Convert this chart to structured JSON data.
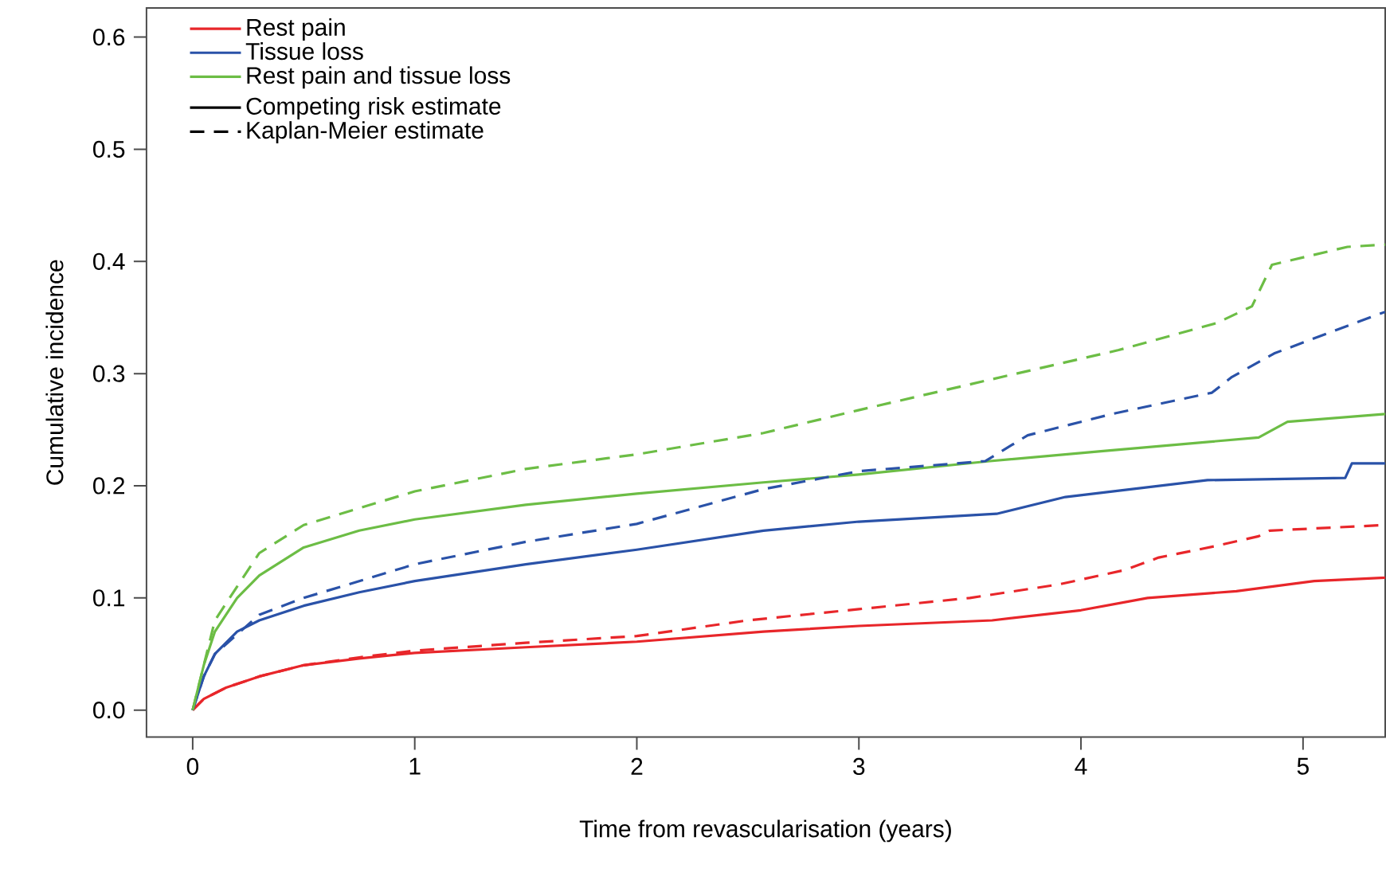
{
  "chart_data": {
    "type": "line",
    "xlabel": "Time from revascularisation (years)",
    "ylabel": "Cumulative incidence",
    "xlim": [
      -0.208,
      5.37
    ],
    "ylim": [
      -0.024,
      0.626
    ],
    "xticks": [
      0,
      1,
      2,
      3,
      4,
      5
    ],
    "yticks": [
      {
        "value": 0,
        "label": "0.0"
      },
      0.1,
      0.2,
      0.3,
      0.4,
      0.5,
      0.6
    ],
    "legend": "top left",
    "grid": false,
    "annotations": [
      "Competing risk estimate",
      "Kaplan-Meier estimate"
    ],
    "series": [
      {
        "name": "Rest pain",
        "color": "#e8262a",
        "line_style": "solid",
        "x": [
          0,
          0.05,
          0.15,
          0.3,
          0.5,
          0.75,
          1,
          1.5,
          2,
          2.57,
          3,
          3.6,
          4,
          4.3,
          4.7,
          5.05,
          5.37
        ],
        "values": [
          0,
          0.01,
          0.02,
          0.03,
          0.04,
          0.046,
          0.051,
          0.056,
          0.061,
          0.07,
          0.075,
          0.08,
          0.089,
          0.1,
          0.106,
          0.115,
          0.118
        ]
      },
      {
        "name": "Tissue loss",
        "color": "#2a52a8",
        "line_style": "solid",
        "x": [
          0,
          0.05,
          0.1,
          0.2,
          0.3,
          0.5,
          0.75,
          1,
          1.5,
          2,
          2.57,
          3,
          3.62,
          3.93,
          4.57,
          5.19,
          5.22,
          5.37
        ],
        "values": [
          0,
          0.03,
          0.05,
          0.07,
          0.08,
          0.093,
          0.105,
          0.115,
          0.13,
          0.143,
          0.16,
          0.168,
          0.175,
          0.19,
          0.205,
          0.207,
          0.22,
          0.22
        ]
      },
      {
        "name": "Rest pain and tissue loss",
        "color": "#6cbd45",
        "line_style": "solid",
        "x": [
          0,
          0.05,
          0.1,
          0.2,
          0.3,
          0.5,
          0.75,
          1,
          1.5,
          2,
          2.57,
          3,
          3.59,
          4.1,
          4.8,
          4.93,
          5.37
        ],
        "values": [
          0,
          0.04,
          0.07,
          0.1,
          0.12,
          0.145,
          0.16,
          0.17,
          0.183,
          0.193,
          0.203,
          0.21,
          0.222,
          0.231,
          0.243,
          0.257,
          0.264
        ]
      },
      {
        "color": "#e8262a",
        "line_style": "dashed",
        "x": [
          0,
          0.05,
          0.15,
          0.3,
          0.5,
          0.75,
          1,
          1.5,
          2,
          2.5,
          3,
          3.5,
          3.9,
          4.2,
          4.35,
          4.6,
          4.8,
          4.85,
          5.37
        ],
        "values": [
          0,
          0.01,
          0.02,
          0.03,
          0.04,
          0.047,
          0.053,
          0.06,
          0.066,
          0.08,
          0.09,
          0.1,
          0.112,
          0.125,
          0.136,
          0.146,
          0.155,
          0.16,
          0.165
        ]
      },
      {
        "color": "#2a52a8",
        "line_style": "dashed",
        "x": [
          0,
          0.05,
          0.1,
          0.3,
          0.5,
          1,
          1.5,
          2,
          2.57,
          3,
          3.57,
          3.76,
          4.14,
          4.59,
          4.68,
          4.87,
          5.3,
          5.37
        ],
        "values": [
          0,
          0.03,
          0.05,
          0.085,
          0.1,
          0.13,
          0.15,
          0.166,
          0.197,
          0.213,
          0.222,
          0.245,
          0.264,
          0.283,
          0.297,
          0.318,
          0.35,
          0.355
        ]
      },
      {
        "color": "#6cbd45",
        "line_style": "dashed",
        "x": [
          0,
          0.05,
          0.1,
          0.3,
          0.5,
          1,
          1.5,
          2,
          2.57,
          2.99,
          3.6,
          4.17,
          4.61,
          4.77,
          4.86,
          5.2,
          5.37
        ],
        "values": [
          0,
          0.04,
          0.08,
          0.14,
          0.165,
          0.195,
          0.215,
          0.228,
          0.247,
          0.267,
          0.295,
          0.321,
          0.345,
          0.36,
          0.397,
          0.413,
          0.415
        ]
      }
    ]
  }
}
